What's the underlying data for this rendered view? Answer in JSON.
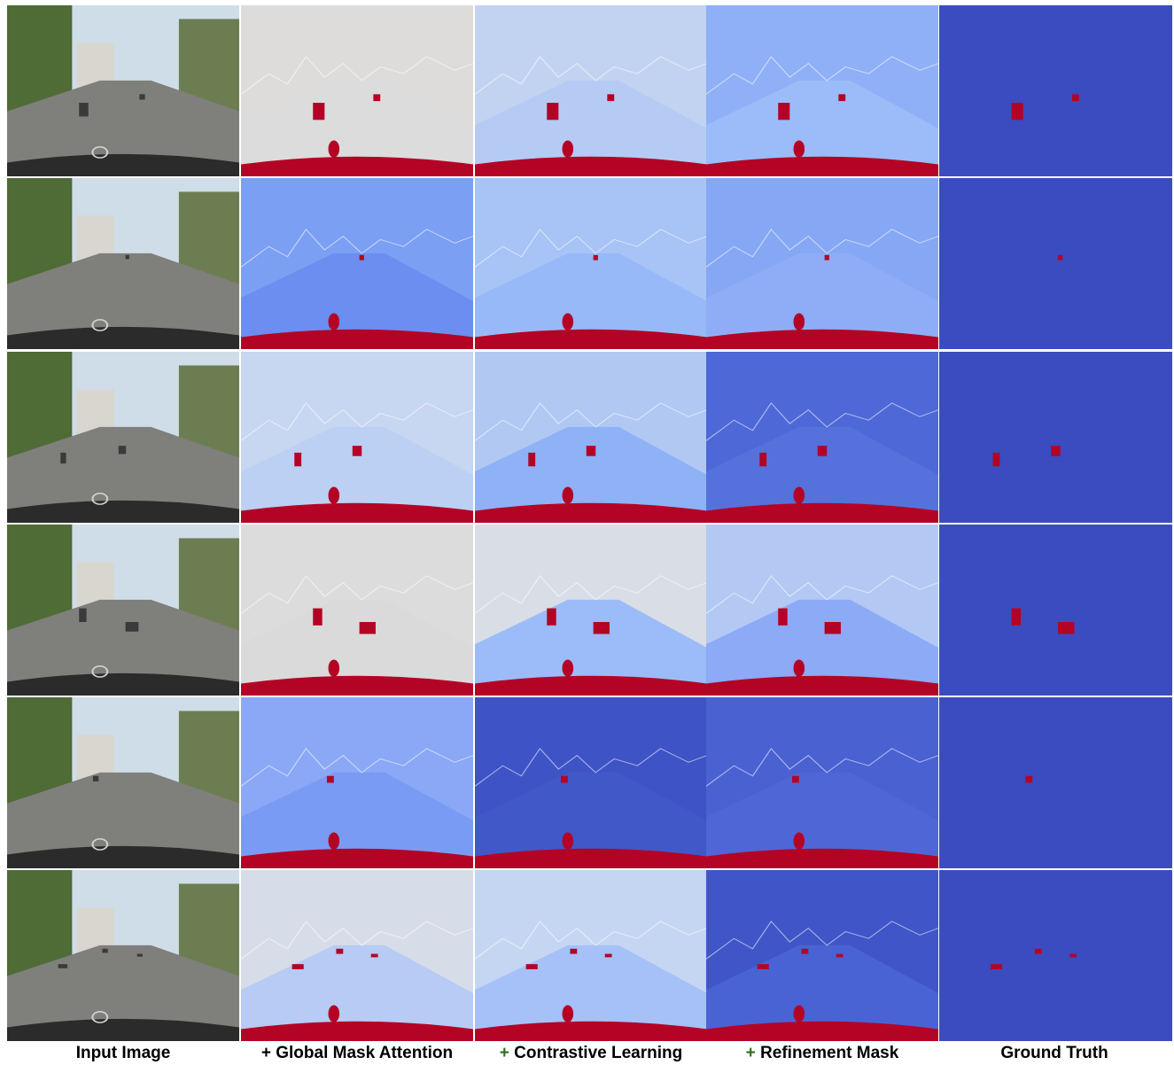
{
  "columns": [
    {
      "prefix": "",
      "label": "Input Image"
    },
    {
      "prefix": "+",
      "label": "Global Mask Attention"
    },
    {
      "prefix": "+",
      "label": "Contrastive Learning"
    },
    {
      "prefix": "+",
      "label": "Refinement Mask"
    },
    {
      "prefix": "",
      "label": "Ground Truth"
    }
  ],
  "palette": {
    "anomaly_red": "#b40426",
    "ground_truth_blue": "#3b4cc0",
    "road_gray": "#7f7f7c",
    "sky_blue": "#cfdde8",
    "foliage_green": "#4f6b36"
  },
  "rows": [
    {
      "bg": [
        "#dedcdb",
        "#c2d3f2",
        "#8fb0f6",
        "#3b4cc0"
      ],
      "road": [
        "#dcdcdc",
        "#b6cbf4",
        "#9bbcf8",
        "#3b4cc0"
      ]
    },
    {
      "bg": [
        "#7b9ff3",
        "#a8c3f5",
        "#86a7f4",
        "#3b4cc0"
      ],
      "road": [
        "#6b8ef0",
        "#98b9f8",
        "#8eadf6",
        "#3b4cc0"
      ]
    },
    {
      "bg": [
        "#c7d6f1",
        "#b1c8f3",
        "#4e68d8",
        "#3b4cc0"
      ],
      "road": [
        "#bcd0f4",
        "#8fb1f6",
        "#5572dc",
        "#3b4cc0"
      ]
    },
    {
      "bg": [
        "#dcdcdc",
        "#d9dde6",
        "#b3c9f4",
        "#3b4cc0"
      ],
      "road": [
        "#dadada",
        "#9bbcf8",
        "#8caaf5",
        "#3b4cc0"
      ]
    },
    {
      "bg": [
        "#8aa8f5",
        "#3e53c6",
        "#4a61d2",
        "#3b4cc0"
      ],
      "road": [
        "#7a9bf3",
        "#4058c8",
        "#4f67d6",
        "#3b4cc0"
      ]
    },
    {
      "bg": [
        "#d6dde9",
        "#c5d6f2",
        "#3f55c8",
        "#3b4cc0"
      ],
      "road": [
        "#b7cbf4",
        "#a5c1f7",
        "#4a63d4",
        "#3b4cc0"
      ]
    }
  ]
}
